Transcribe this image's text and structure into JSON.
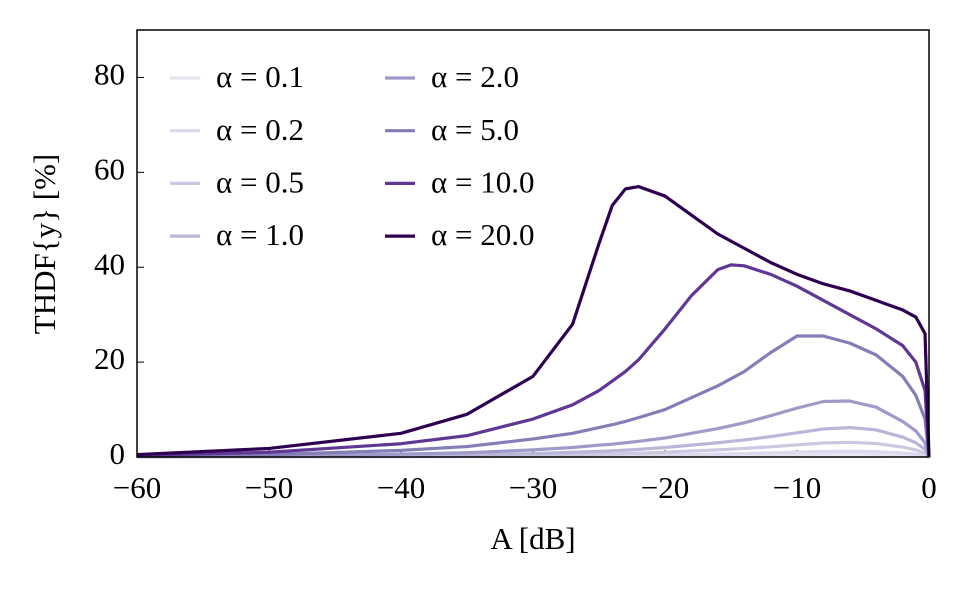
{
  "chart_data": {
    "type": "line",
    "xlabel": "A [dB]",
    "ylabel": "THDF{y} [%]",
    "x": [
      -60,
      -50,
      -40,
      -35,
      -30,
      -27,
      -25,
      -24,
      -23,
      -22,
      -20,
      -18,
      -16,
      -15,
      -14,
      -12,
      -10,
      -8,
      -6,
      -4,
      -2,
      -1,
      -0.3,
      0
    ],
    "series": [
      {
        "name": "α = 0.1",
        "color": "#e6e4f1",
        "values": [
          0.01,
          0.01,
          0.03,
          0.05,
          0.07,
          0.1,
          0.12,
          0.13,
          0.15,
          0.16,
          0.2,
          0.25,
          0.3,
          0.33,
          0.36,
          0.43,
          0.5,
          0.58,
          0.6,
          0.56,
          0.42,
          0.3,
          0.16,
          0
        ]
      },
      {
        "name": "α = 0.2",
        "color": "#dcdaec",
        "values": [
          0.02,
          0.03,
          0.06,
          0.09,
          0.14,
          0.2,
          0.24,
          0.26,
          0.29,
          0.32,
          0.4,
          0.5,
          0.6,
          0.66,
          0.72,
          0.86,
          1.02,
          1.17,
          1.22,
          1.13,
          0.84,
          0.6,
          0.32,
          0
        ]
      },
      {
        "name": "α = 0.5",
        "color": "#cbc9e2",
        "values": [
          0.03,
          0.05,
          0.15,
          0.22,
          0.35,
          0.5,
          0.6,
          0.65,
          0.72,
          0.8,
          1,
          1.25,
          1.5,
          1.65,
          1.8,
          2.15,
          2.55,
          2.95,
          3.1,
          2.85,
          2.1,
          1.5,
          0.8,
          0
        ]
      },
      {
        "name": "α = 1.0",
        "color": "#b9b6d9",
        "values": [
          0.05,
          0.1,
          0.3,
          0.45,
          0.7,
          1,
          1.2,
          1.3,
          1.45,
          1.6,
          2,
          2.5,
          3,
          3.3,
          3.6,
          4.3,
          5.1,
          5.9,
          6.2,
          5.7,
          4.2,
          3,
          1.6,
          0
        ]
      },
      {
        "name": "α = 2.0",
        "color": "#9f9bc9",
        "values": [
          0.1,
          0.2,
          0.6,
          0.9,
          1.5,
          2,
          2.5,
          2.7,
          3,
          3.3,
          4,
          5,
          6,
          6.6,
          7.2,
          8.7,
          10.3,
          11.7,
          11.8,
          10.5,
          7.5,
          5.5,
          3,
          0
        ]
      },
      {
        "name": "α = 5.0",
        "color": "#837fb6",
        "values": [
          0.2,
          0.5,
          1.4,
          2.2,
          3.8,
          5,
          6.2,
          6.8,
          7.5,
          8.3,
          10,
          12.5,
          15,
          16.5,
          18,
          22,
          25.5,
          25.5,
          24,
          21.5,
          17,
          13,
          8,
          0
        ]
      },
      {
        "name": "α = 10.0",
        "color": "#5f3895",
        "values": [
          0.3,
          1,
          2.8,
          4.5,
          8,
          11,
          14,
          16,
          18,
          20.5,
          27,
          34,
          39.5,
          40.5,
          40.3,
          38.5,
          36,
          33,
          30,
          27,
          23.5,
          20,
          14,
          0
        ]
      },
      {
        "name": "α = 20.0",
        "color": "#2d0052",
        "values": [
          0.5,
          1.8,
          5,
          9,
          17,
          28,
          45,
          53,
          56.5,
          57,
          55,
          51,
          47,
          45.5,
          44,
          41,
          38.5,
          36.5,
          35,
          33,
          31,
          29.5,
          26,
          0
        ]
      }
    ],
    "xlim": [
      -60,
      0
    ],
    "ylim": [
      0,
      90
    ],
    "xticks": [
      {
        "value": -60,
        "label": "−60"
      },
      {
        "value": -50,
        "label": "−50"
      },
      {
        "value": -40,
        "label": "−40"
      },
      {
        "value": -30,
        "label": "−30"
      },
      {
        "value": -20,
        "label": "−20"
      },
      {
        "value": -10,
        "label": "−10"
      },
      0
    ],
    "yticks": [
      0,
      20,
      40,
      60,
      80
    ],
    "legend": "upper left",
    "legend_columns": 2
  }
}
